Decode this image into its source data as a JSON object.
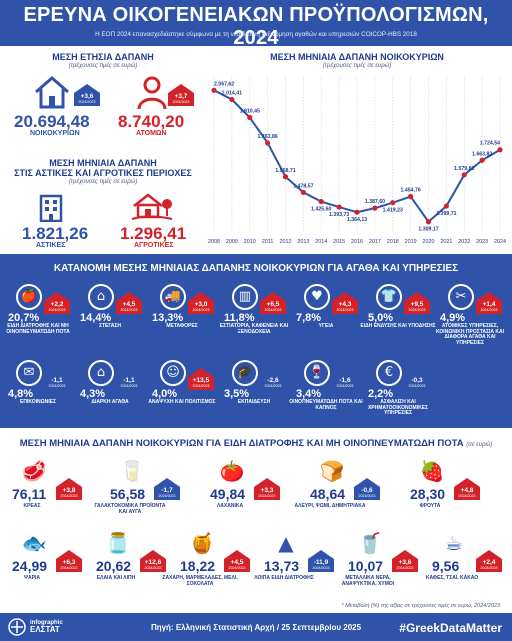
{
  "header": {
    "title": "ΕΡΕΥΝΑ ΟΙΚΟΓΕΝΕΙΑΚΩΝ ΠΡΟΫΠΟΛΟΓΙΣΜΩΝ, 2024",
    "subtitle": "Η ΕΟΠ 2024 επανασχεδιάστηκε σύμφωνα με τη νέα διεθνή ταξινόμηση αγαθών και υπηρεσιών COICOP-HBS 2018"
  },
  "annual": {
    "title": "ΜΕΣΗ ΕΤΗΣΙΑ ΔΑΠΑΝΗ",
    "subtitle": "(τρέχουσες τιμές σε ευρώ)",
    "household_value": "20.694,48",
    "household_label": "ΝΟΙΚΟΚΥΡΙΩΝ",
    "household_change": "+3,6",
    "household_years": "2024/2023",
    "person_value": "8.740,20",
    "person_label": "ΑΤΟΜΩΝ",
    "person_change": "+3,7",
    "person_years": "2024/2023",
    "colors": {
      "blue": "#2e53a8",
      "red": "#d2232a"
    }
  },
  "urban_rural": {
    "title_line1": "ΜΕΣΗ ΜΗΝΙΑΙΑ ΔΑΠΑΝΗ",
    "title_line2": "ΣΤΙΣ ΑΣΤΙΚΕΣ ΚΑΙ ΑΓΡΟΤΙΚΕΣ ΠΕΡΙΟΧΕΣ",
    "subtitle": "(τρέχουσες τιμές σε ευρώ)",
    "urban_value": "1.821,26",
    "urban_label": "ΑΣΤΙΚΕΣ",
    "rural_value": "1.296,41",
    "rural_label": "ΑΓΡΟΤΙΚΕΣ"
  },
  "chart_data": {
    "type": "line",
    "title": "ΜΕΣΗ ΜΗΝΙΑΙΑ ΔΑΠΑΝΗ ΝΟΙΚΟΚΥΡΙΩΝ",
    "subtitle": "(τρέχουσες τιμές σε ευρώ)",
    "x": [
      "2008",
      "2009",
      "2010",
      "2011",
      "2012",
      "2013",
      "2014",
      "2015",
      "2016",
      "2017",
      "2018",
      "2019",
      "2020",
      "2021",
      "2022",
      "2023",
      "2024"
    ],
    "y": [
      2067.62,
      2014.41,
      1910.45,
      1763.86,
      1568.71,
      1478.57,
      1425.6,
      1393.73,
      1364.13,
      1387.6,
      1419.23,
      1454.76,
      1309.17,
      1399.71,
      1579.81,
      1663.82,
      1724.54
    ],
    "labels": [
      "2.067,62",
      "2.014,41",
      "1.910,45",
      "1.763,86",
      "1.568,71",
      "1.478,57",
      "1.425,60",
      "1.393,73",
      "1.364,13",
      "1.387,60",
      "1.419,23",
      "1.454,76",
      "1.309,17",
      "1.399,71",
      "1.579,81",
      "1.663,82",
      "1.724,54"
    ],
    "xlabel": "",
    "ylabel": "",
    "ylim": [
      1250,
      2150
    ],
    "grid": true,
    "line_color": "#2e53a8",
    "point_color": "#d2232a"
  },
  "categories": {
    "title": "ΚΑΤΑΝΟΜΗ ΜΕΣΗΣ ΜΗΝΙΑΙΑΣ ΔΑΠΑΝΗΣ ΝΟΙΚΟΚΥΡΙΩΝ ΓΙΑ ΑΓΑΘΑ ΚΑΙ ΥΠΗΡΕΣΙΕΣ",
    "items": [
      {
        "pct": "20,7%",
        "change": "+2,2",
        "years": "2024/2023",
        "label": "ΕΙΔΗ ΔΙΑΤΡΟΦΗΣ ΚΑΙ ΜΗ ΟΙΝΟΠΝΕΥΜΑΤΩΔΗ ΠΟΤΑ",
        "icon": "apple-icon"
      },
      {
        "pct": "14,4%",
        "change": "+4,5",
        "years": "2024/2023",
        "label": "ΣΤΕΓΑΣΗ",
        "icon": "house-icon"
      },
      {
        "pct": "13,3%",
        "change": "+3,0",
        "years": "2024/2023",
        "label": "ΜΕΤΑΦΟΡΕΣ",
        "icon": "truck-icon"
      },
      {
        "pct": "11,8%",
        "change": "+6,5",
        "years": "2024/2023",
        "label": "ΕΣΤΙΑΤΟΡΙΑ, ΚΑΦΕΝΕΙΑ ΚΑΙ ΞΕΝΟΔΟΧΕΙΑ",
        "icon": "hotel-icon"
      },
      {
        "pct": "7,8%",
        "change": "+4,3",
        "years": "2024/2023",
        "label": "ΥΓΕΙΑ",
        "icon": "heartbeat-icon"
      },
      {
        "pct": "5,0%",
        "change": "+9,5",
        "years": "2024/2023",
        "label": "ΕΙΔΗ ΕΝΔΥΣΗΣ ΚΑΙ ΥΠΟΔΗΣΗΣ",
        "icon": "shirt-icon"
      },
      {
        "pct": "4,9%",
        "change": "+1,4",
        "years": "2024/2023",
        "label": "ΑΤΟΜΙΚΕΣ ΥΠΗΡΕΣΙΕΣ, ΚΟΙΝΩΝΙΚΗ ΠΡΟΣΤΑΣΙΑ ΚΑΙ ΔΙΑΦΟΡΑ ΑΓΑΘΑ ΚΑΙ ΥΠΗΡΕΣΙΕΣ",
        "icon": "scissors-icon"
      },
      {
        "pct": "4,8%",
        "change": "-1,1",
        "years": "2024/2023",
        "label": "ΕΠΙΚΟΙΝΩΝΙΕΣ",
        "icon": "envelope-icon"
      },
      {
        "pct": "4,3%",
        "change": "-1,1",
        "years": "2024/2023",
        "label": "ΔΙΑΡΚΗ ΑΓΑΘΑ",
        "icon": "home-goods-icon"
      },
      {
        "pct": "4,0%",
        "change": "+13,5",
        "years": "2024/2023",
        "label": "ΑΝΑΨΥΧΗ ΚΑΙ ΠΟΛΙΤΙΣΜΟΣ",
        "icon": "theatre-masks-icon"
      },
      {
        "pct": "3,5%",
        "change": "-2,6",
        "years": "2024/2023",
        "label": "ΕΚΠΑΙΔΕΥΣΗ",
        "icon": "graduation-cap-icon"
      },
      {
        "pct": "3,4%",
        "change": "-1,6",
        "years": "2024/2023",
        "label": "ΟΙΝΟΠΝΕΥΜΑΤΩΔΗ ΠΟΤΑ ΚΑΙ ΚΑΠΝΟΣ",
        "icon": "wine-glass-icon"
      },
      {
        "pct": "2,2%",
        "change": "-0,3",
        "years": "2024/2023",
        "label": "ΑΣΦΑΛΙΣΗ ΚΑΙ ΧΡΗΜΑΤΟΟΙΚΟΝΟΜΙΚΕΣ ΥΠΗΡΕΣΙΕΣ",
        "icon": "euro-icon"
      }
    ]
  },
  "food": {
    "title": "ΜΕΣΗ ΜΗΝΙΑΙΑ ΔΑΠΑΝΗ ΝΟΙΚΟΚΥΡΙΩΝ ΓΙΑ ΕΙΔΗ ΔΙΑΤΡΟΦΗΣ ΚΑΙ ΜΗ ΟΙΝΟΠΝΕΥΜΑΤΩΔΗ ΠΟΤΑ",
    "note": "(σε ευρώ)",
    "items": [
      {
        "value": "76,11",
        "change": "+3,8",
        "years": "2024/2023",
        "label": "ΚΡΕΑΣ",
        "icon": "meat-icon"
      },
      {
        "value": "56,58",
        "change": "-1,7",
        "years": "2024/2023",
        "label": "ΓΑΛΑΚΤΟΚΟΜΙΚΑ ΠΡΟΪΟΝΤΑ ΚΑΙ ΑΥΓΑ",
        "icon": "dairy-icon"
      },
      {
        "value": "49,84",
        "change": "+3,3",
        "years": "2024/2023",
        "label": "ΛΑΧΑΝΙΚΑ",
        "icon": "vegetables-icon"
      },
      {
        "value": "48,64",
        "change": "-0,6",
        "years": "2024/2023",
        "label": "ΑΛΕΥΡΙ, ΨΩΜΙ, ΔΗΜΗΤΡΙΑΚΑ",
        "icon": "bread-icon"
      },
      {
        "value": "28,30",
        "change": "+4,8",
        "years": "2024/2023",
        "label": "ΦΡΟΥΤΑ",
        "icon": "fruit-icon"
      },
      {
        "value": "24,99",
        "change": "+6,3",
        "years": "2024/2023",
        "label": "ΨΑΡΙΑ",
        "icon": "fish-icon"
      },
      {
        "value": "20,62",
        "change": "+12,6",
        "years": "2024/2023",
        "label": "ΕΛΑΙΑ ΚΑΙ ΛΙΠΗ",
        "icon": "oil-bottle-icon"
      },
      {
        "value": "18,22",
        "change": "+4,5",
        "years": "2024/2023",
        "label": "ΖΑΧΑΡΗ, ΜΑΡΜΕΛΑΔΕΣ, ΜΕΛΙ, ΣΟΚΟΛΑΤΑ",
        "icon": "sweets-icon"
      },
      {
        "value": "13,73",
        "change": "-11,9",
        "years": "2024/2023",
        "label": "ΛΟΙΠΑ ΕΙΔΗ ΔΙΑΤΡΟΦΗΣ",
        "icon": "other-food-icon"
      },
      {
        "value": "10,07",
        "change": "+3,6",
        "years": "2024/2023",
        "label": "ΜΕΤΑΛΛΙΚΑ ΝΕΡΑ, ΑΝΑΨΥΚΤΙΚΑ, ΧΥΜΟΙ",
        "icon": "soft-drink-icon"
      },
      {
        "value": "9,56",
        "change": "+2,4",
        "years": "2024/2023",
        "label": "ΚΑΦΕΣ, ΤΣΑΪ, ΚΑΚΑΟ",
        "icon": "coffee-icon"
      }
    ]
  },
  "footnote": "* Μεταβολή (%) της αξίας σε τρέχουσες τιμές σε ευρώ, 2024/2023",
  "footer": {
    "logo_line1": "infographic",
    "logo_line2": "ΕΛΣΤΑΤ",
    "source": "Πηγή: Ελληνική Στατιστική Αρχή / 25 Σεπτεμβρίου 2025",
    "hashtag": "#GreekDataMatter"
  }
}
